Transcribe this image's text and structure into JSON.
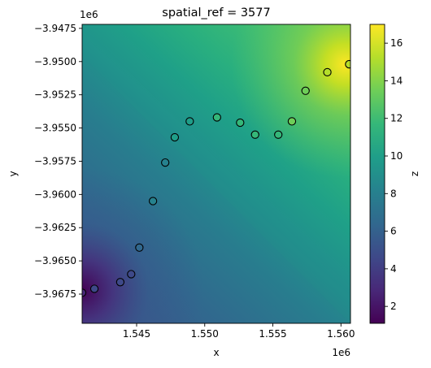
{
  "chart_data": {
    "type": "heatmap",
    "title": "spatial_ref = 3577",
    "xlabel": "x",
    "ylabel": "y",
    "x_offset_label": "1e6",
    "y_offset_label": "1e6",
    "xlim": [
      1.541,
      1.5607
    ],
    "ylim": [
      -3.9697,
      -3.9472
    ],
    "x_ticks": [
      1.545,
      1.55,
      1.555,
      1.56
    ],
    "x_tick_labels": [
      "1.545",
      "1.550",
      "1.555",
      "1.560"
    ],
    "y_ticks": [
      -3.9475,
      -3.95,
      -3.9525,
      -3.955,
      -3.9575,
      -3.96,
      -3.9625,
      -3.965,
      -3.9675
    ],
    "y_tick_labels": [
      "−3.9475",
      "−3.9500",
      "−3.9525",
      "−3.9550",
      "−3.9575",
      "−3.9600",
      "−3.9625",
      "−3.9650",
      "−3.9675"
    ],
    "colorbar": {
      "label": "z",
      "range": [
        1.1,
        17.0
      ],
      "colormap": "viridis",
      "ticks": [
        2,
        4,
        6,
        8,
        10,
        12,
        14,
        16
      ],
      "tick_labels": [
        "2",
        "4",
        "6",
        "8",
        "10",
        "12",
        "14",
        "16"
      ]
    },
    "points": [
      {
        "x": 1.541,
        "y": -3.9674
      },
      {
        "x": 1.5419,
        "y": -3.9671
      },
      {
        "x": 1.5438,
        "y": -3.9666
      },
      {
        "x": 1.5446,
        "y": -3.966
      },
      {
        "x": 1.5452,
        "y": -3.964
      },
      {
        "x": 1.5462,
        "y": -3.9605
      },
      {
        "x": 1.5471,
        "y": -3.9576
      },
      {
        "x": 1.5478,
        "y": -3.9557
      },
      {
        "x": 1.5489,
        "y": -3.9545
      },
      {
        "x": 1.5509,
        "y": -3.9542
      },
      {
        "x": 1.5526,
        "y": -3.9546
      },
      {
        "x": 1.5537,
        "y": -3.9555
      },
      {
        "x": 1.5554,
        "y": -3.9555
      },
      {
        "x": 1.5564,
        "y": -3.9545
      },
      {
        "x": 1.5574,
        "y": -3.9522
      },
      {
        "x": 1.559,
        "y": -3.9508
      },
      {
        "x": 1.5606,
        "y": -3.9502
      }
    ]
  }
}
